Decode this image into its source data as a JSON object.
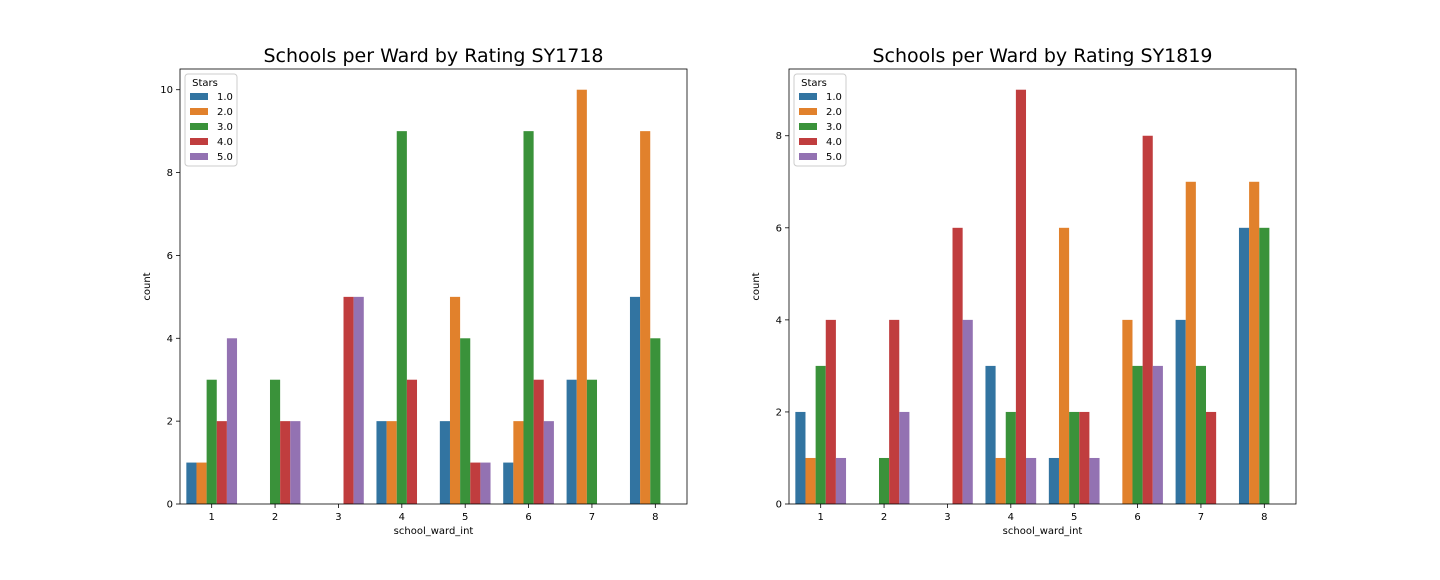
{
  "chart_data": [
    {
      "type": "bar",
      "title": "Schools per Ward by Rating SY1718",
      "xlabel": "school_ward_int",
      "ylabel": "count",
      "ylim": [
        0,
        10.5
      ],
      "yticks": [
        0,
        2,
        4,
        6,
        8,
        10
      ],
      "categories": [
        "1",
        "2",
        "3",
        "4",
        "5",
        "6",
        "7",
        "8"
      ],
      "legend": {
        "title": "Stars",
        "position": "top-left"
      },
      "series": [
        {
          "name": "1.0",
          "color": "#3274a1",
          "values": [
            1,
            0,
            0,
            2,
            2,
            1,
            3,
            5
          ]
        },
        {
          "name": "2.0",
          "color": "#e1812c",
          "values": [
            1,
            0,
            0,
            2,
            5,
            2,
            10,
            9
          ]
        },
        {
          "name": "3.0",
          "color": "#3a923a",
          "values": [
            3,
            3,
            0,
            9,
            4,
            9,
            3,
            4
          ]
        },
        {
          "name": "4.0",
          "color": "#c03d3e",
          "values": [
            2,
            2,
            5,
            3,
            1,
            3,
            0,
            0
          ]
        },
        {
          "name": "5.0",
          "color": "#9372b2",
          "values": [
            4,
            2,
            5,
            0,
            1,
            2,
            0,
            0
          ]
        }
      ]
    },
    {
      "type": "bar",
      "title": "Schools per Ward by Rating SY1819",
      "xlabel": "school_ward_int",
      "ylabel": "count",
      "ylim": [
        0,
        9.45
      ],
      "yticks": [
        0,
        2,
        4,
        6,
        8
      ],
      "categories": [
        "1",
        "2",
        "3",
        "4",
        "5",
        "6",
        "7",
        "8"
      ],
      "legend": {
        "title": "Stars",
        "position": "top-left"
      },
      "series": [
        {
          "name": "1.0",
          "color": "#3274a1",
          "values": [
            2,
            0,
            0,
            3,
            1,
            0,
            4,
            6
          ]
        },
        {
          "name": "2.0",
          "color": "#e1812c",
          "values": [
            1,
            0,
            0,
            1,
            6,
            4,
            7,
            7
          ]
        },
        {
          "name": "3.0",
          "color": "#3a923a",
          "values": [
            3,
            1,
            0,
            2,
            2,
            3,
            3,
            6
          ]
        },
        {
          "name": "4.0",
          "color": "#c03d3e",
          "values": [
            4,
            4,
            6,
            9,
            2,
            8,
            2,
            0
          ]
        },
        {
          "name": "5.0",
          "color": "#9372b2",
          "values": [
            1,
            2,
            4,
            1,
            1,
            3,
            0,
            0
          ]
        }
      ]
    }
  ]
}
